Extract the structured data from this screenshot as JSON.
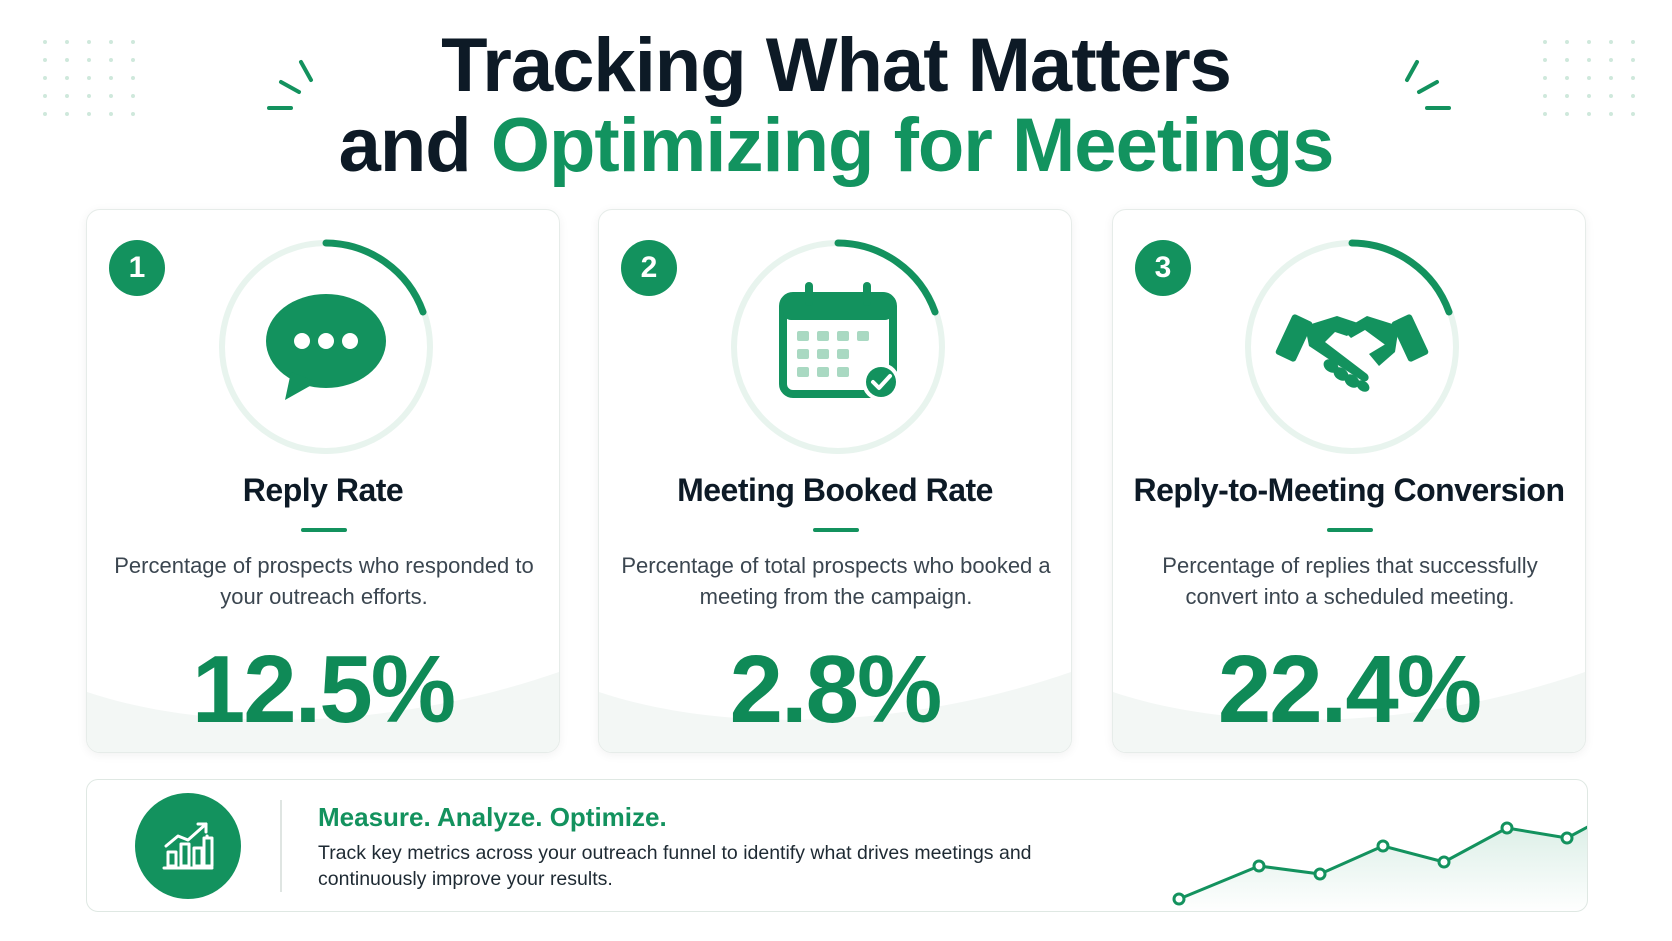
{
  "header": {
    "title_line1": "Tracking What Matters",
    "title_line2_prefix": "and",
    "title_line2_highlight": "Optimizing for Meetings"
  },
  "colors": {
    "brand_green": "#13925e",
    "dark_text": "#0d1a26",
    "ring_track": "#e8f4ee"
  },
  "cards": [
    {
      "number": "1",
      "icon": "chat-bubble-icon",
      "title": "Reply Rate",
      "description": "Percentage of prospects who responded to your outreach efforts.",
      "value": "12.5%"
    },
    {
      "number": "2",
      "icon": "calendar-check-icon",
      "title": "Meeting Booked Rate",
      "description": "Percentage of total prospects who booked a meeting from the campaign.",
      "value": "2.8%"
    },
    {
      "number": "3",
      "icon": "handshake-icon",
      "title": "Reply-to-Meeting Conversion",
      "description": "Percentage of replies that successfully convert into a scheduled meeting.",
      "value": "22.4%"
    }
  ],
  "footer": {
    "icon": "growth-chart-icon",
    "heading": "Measure. Analyze. Optimize.",
    "text": "Track key metrics across your outreach funnel to identify what drives meetings and continuously improve your results."
  }
}
